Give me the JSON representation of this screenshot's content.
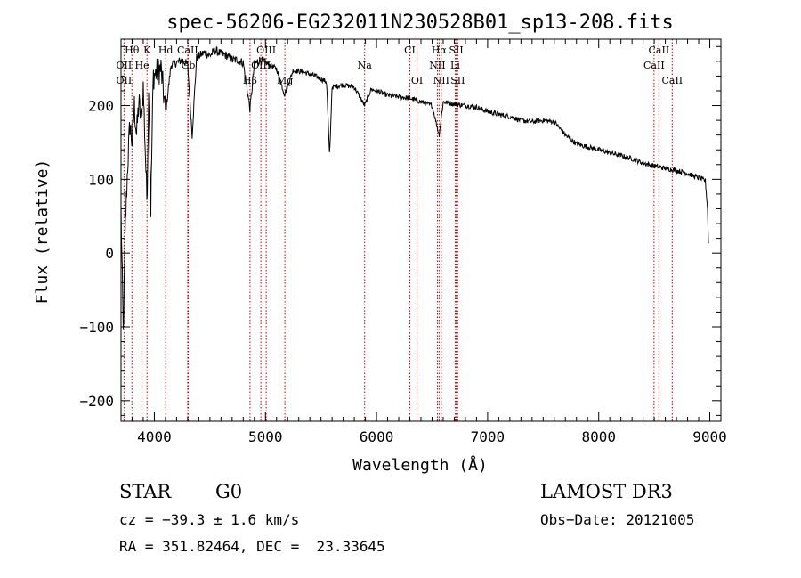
{
  "chart_data": {
    "type": "line",
    "title": "spec-56206-EG232011N230528B01_sp13-208.fits",
    "xlabel": "Wavelength (Å)",
    "ylabel": "Flux (relative)",
    "xlim": [
      3700,
      9100
    ],
    "ylim": [
      -228,
      290
    ],
    "xticks": [
      4000,
      5000,
      6000,
      7000,
      8000,
      9000
    ],
    "xtick_labels": [
      "4000",
      "5000",
      "6000",
      "7000",
      "8000",
      "9000"
    ],
    "yticks": [
      -200,
      -100,
      0,
      100,
      200
    ],
    "ytick_labels": [
      "−200",
      "−100",
      "0",
      "100",
      "200"
    ],
    "spectrum_knots": [
      [
        3700,
        60
      ],
      [
        3720,
        -110
      ],
      [
        3740,
        40
      ],
      [
        3760,
        120
      ],
      [
        3780,
        175
      ],
      [
        3800,
        150
      ],
      [
        3820,
        200
      ],
      [
        3840,
        160
      ],
      [
        3860,
        205
      ],
      [
        3880,
        180
      ],
      [
        3900,
        225
      ],
      [
        3933,
        70
      ],
      [
        3950,
        230
      ],
      [
        3968,
        60
      ],
      [
        3990,
        240
      ],
      [
        4020,
        245
      ],
      [
        4060,
        250
      ],
      [
        4102,
        190
      ],
      [
        4150,
        255
      ],
      [
        4200,
        258
      ],
      [
        4250,
        262
      ],
      [
        4300,
        255
      ],
      [
        4340,
        160
      ],
      [
        4380,
        265
      ],
      [
        4450,
        272
      ],
      [
        4500,
        268
      ],
      [
        4550,
        275
      ],
      [
        4600,
        270
      ],
      [
        4650,
        268
      ],
      [
        4700,
        262
      ],
      [
        4750,
        262
      ],
      [
        4800,
        258
      ],
      [
        4861,
        195
      ],
      [
        4900,
        256
      ],
      [
        4950,
        262
      ],
      [
        5000,
        258
      ],
      [
        5100,
        250
      ],
      [
        5172,
        215
      ],
      [
        5250,
        248
      ],
      [
        5350,
        245
      ],
      [
        5450,
        240
      ],
      [
        5550,
        232
      ],
      [
        5577,
        130
      ],
      [
        5600,
        225
      ],
      [
        5700,
        228
      ],
      [
        5800,
        225
      ],
      [
        5893,
        200
      ],
      [
        5950,
        222
      ],
      [
        6000,
        220
      ],
      [
        6100,
        214
      ],
      [
        6200,
        212
      ],
      [
        6300,
        210
      ],
      [
        6400,
        205
      ],
      [
        6500,
        200
      ],
      [
        6563,
        160
      ],
      [
        6600,
        205
      ],
      [
        6700,
        202
      ],
      [
        6800,
        200
      ],
      [
        6900,
        198
      ],
      [
        7000,
        192
      ],
      [
        7100,
        188
      ],
      [
        7200,
        185
      ],
      [
        7300,
        180
      ],
      [
        7400,
        178
      ],
      [
        7500,
        180
      ],
      [
        7600,
        178
      ],
      [
        7700,
        160
      ],
      [
        7800,
        148
      ],
      [
        7900,
        144
      ],
      [
        8000,
        140
      ],
      [
        8100,
        136
      ],
      [
        8200,
        132
      ],
      [
        8300,
        128
      ],
      [
        8400,
        122
      ],
      [
        8500,
        118
      ],
      [
        8600,
        115
      ],
      [
        8700,
        112
      ],
      [
        8800,
        108
      ],
      [
        8900,
        102
      ],
      [
        8960,
        98
      ],
      [
        8980,
        60
      ],
      [
        8990,
        0
      ]
    ],
    "line_markers": [
      {
        "label": "Hθ",
        "x": 3798,
        "row": 0
      },
      {
        "label": "K",
        "x": 3934,
        "row": 0
      },
      {
        "label": "Hd",
        "x": 4102,
        "row": 0
      },
      {
        "label": "CaII",
        "x": 4300,
        "row": 0
      },
      {
        "label": "OIII",
        "x": 5007,
        "row": 0
      },
      {
        "label": "CI",
        "x": 6300,
        "row": 0
      },
      {
        "label": "Hα",
        "x": 6563,
        "row": 0
      },
      {
        "label": "SII",
        "x": 6717,
        "row": 0
      },
      {
        "label": "CaII",
        "x": 8542,
        "row": 0
      },
      {
        "label": "OII",
        "x": 3727,
        "row": 1
      },
      {
        "label": "He",
        "x": 3889,
        "row": 1
      },
      {
        "label": "Gb",
        "x": 4305,
        "row": 1
      },
      {
        "label": "OIII",
        "x": 4959,
        "row": 1
      },
      {
        "label": "Na",
        "x": 5893,
        "row": 1
      },
      {
        "label": "NII",
        "x": 6548,
        "row": 1
      },
      {
        "label": "Li",
        "x": 6708,
        "row": 1
      },
      {
        "label": "CaII",
        "x": 8498,
        "row": 1
      },
      {
        "label": "OII",
        "x": 3727,
        "row": 2
      },
      {
        "label": "Hβ",
        "x": 4861,
        "row": 2
      },
      {
        "label": "Mg",
        "x": 5175,
        "row": 2
      },
      {
        "label": "OI",
        "x": 6364,
        "row": 2
      },
      {
        "label": "NII",
        "x": 6583,
        "row": 2
      },
      {
        "label": "SII",
        "x": 6731,
        "row": 2
      },
      {
        "label": "CaII",
        "x": 8662,
        "row": 2
      }
    ],
    "marker_color": "#cc0000"
  },
  "info": {
    "class_label": "STAR",
    "subclass": "G0",
    "survey": "LAMOST DR3",
    "cz": "cz = −39.3 ± 1.6 km/s",
    "obs_date": "Obs−Date: 20121005",
    "coords": "RA = 351.82464, DEC =  23.33645"
  }
}
